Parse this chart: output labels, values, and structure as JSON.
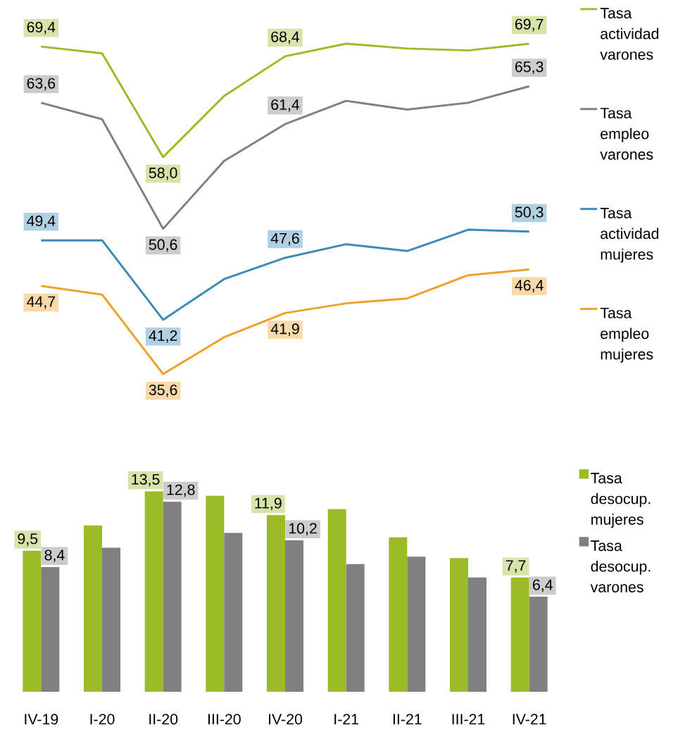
{
  "chart_data": [
    {
      "type": "line",
      "categories": [
        null,
        null,
        null,
        null,
        null,
        null,
        null,
        null,
        null
      ],
      "legend": "right",
      "series": [
        {
          "name": "Tasa actividad varones",
          "color": "#9bbb27",
          "values": [
            69.4,
            68.7,
            58.0,
            64.3,
            68.4,
            69.7,
            69.2,
            69.0,
            69.7
          ],
          "value_labels": [
            "69,4",
            null,
            "58,0",
            null,
            "68,4",
            null,
            null,
            null,
            "69,7"
          ]
        },
        {
          "name": "Tasa empleo varones",
          "color": "#808080",
          "values": [
            63.6,
            61.9,
            50.6,
            57.6,
            61.4,
            63.8,
            62.9,
            63.6,
            65.3
          ],
          "value_labels": [
            "63,6",
            null,
            "50,6",
            null,
            "61,4",
            null,
            null,
            null,
            "65,3"
          ]
        },
        {
          "name": "Tasa actividad mujeres",
          "color": "#3d8ab5",
          "values": [
            49.4,
            49.4,
            41.2,
            45.4,
            47.6,
            49.0,
            48.3,
            50.5,
            50.3
          ],
          "value_labels": [
            "49,4",
            null,
            "41,2",
            null,
            "47,6",
            null,
            null,
            null,
            "50,3"
          ]
        },
        {
          "name": "Tasa empleo mujeres",
          "color": "#f0a028",
          "values": [
            44.7,
            43.8,
            35.6,
            39.4,
            41.9,
            42.9,
            43.4,
            45.8,
            46.4
          ],
          "value_labels": [
            "44,7",
            null,
            "35,6",
            null,
            "41,9",
            null,
            null,
            null,
            "46,4"
          ]
        }
      ]
    },
    {
      "type": "bar",
      "categories": [
        "IV-19",
        "I-20",
        "II-20",
        "III-20",
        "IV-20",
        "I-21",
        "II-21",
        "III-21",
        "IV-21"
      ],
      "legend": "right",
      "series": [
        {
          "name": "Tasa desocup. mujeres",
          "color": "#9bbb27",
          "values": [
            9.5,
            11.2,
            13.5,
            13.2,
            11.9,
            12.3,
            10.4,
            9.0,
            7.7
          ],
          "value_labels": [
            "9,5",
            null,
            "13,5",
            null,
            "11,9",
            null,
            null,
            null,
            "7,7"
          ]
        },
        {
          "name": "Tasa desocup. varones",
          "color": "#808080",
          "values": [
            8.4,
            9.7,
            12.8,
            10.7,
            10.2,
            8.6,
            9.1,
            7.7,
            6.4
          ],
          "value_labels": [
            "8,4",
            null,
            "12,8",
            null,
            "10,2",
            null,
            null,
            null,
            "6,4"
          ]
        }
      ]
    }
  ]
}
